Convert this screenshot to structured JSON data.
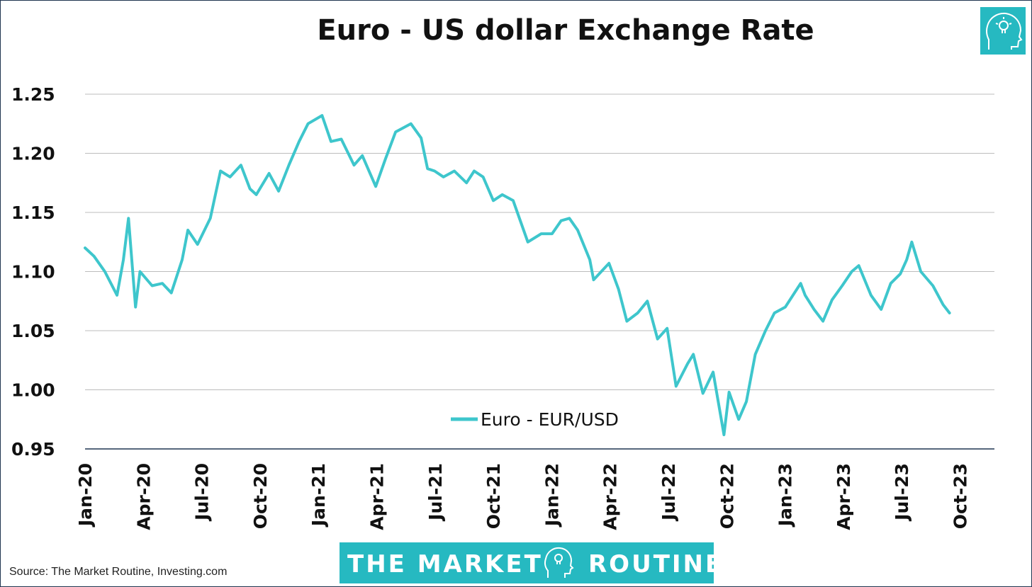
{
  "brand": {
    "name_left": "THE MARKET",
    "name_right": "ROUTINE",
    "logo_icon": "head-lightbulb-icon",
    "color": "#26b9c1"
  },
  "source": "Source: The Market Routine, Investing.com",
  "colors": {
    "line": "#3ec6cc",
    "grid": "#bcbcbc",
    "axis": "#1f3550"
  },
  "chart_data": {
    "type": "line",
    "title": "Euro - US dollar Exchange Rate",
    "xlabel": "",
    "ylabel": "",
    "ylim": [
      0.95,
      1.25
    ],
    "yticks": [
      "1.25",
      "1.20",
      "1.15",
      "1.10",
      "1.05",
      "1.00",
      "0.95"
    ],
    "ytick_values": [
      1.25,
      1.2,
      1.15,
      1.1,
      1.05,
      1.0,
      0.95
    ],
    "xticks": [
      "Jan-20",
      "Apr-20",
      "Jul-20",
      "Oct-20",
      "Jan-21",
      "Apr-21",
      "Jul-21",
      "Oct-21",
      "Jan-22",
      "Apr-22",
      "Jul-22",
      "Oct-22",
      "Jan-23",
      "Apr-23",
      "Jul-23",
      "Oct-23"
    ],
    "grid": true,
    "legend": {
      "position": "bottom-center-inside"
    },
    "series": [
      {
        "name": "Euro - EUR/USD",
        "color": "#3ec6cc",
        "x": [
          "2020-01-01",
          "2020-01-15",
          "2020-02-01",
          "2020-02-20",
          "2020-03-01",
          "2020-03-09",
          "2020-03-20",
          "2020-03-27",
          "2020-04-15",
          "2020-05-01",
          "2020-05-15",
          "2020-06-01",
          "2020-06-10",
          "2020-06-25",
          "2020-07-15",
          "2020-07-31",
          "2020-08-15",
          "2020-09-01",
          "2020-09-15",
          "2020-09-25",
          "2020-10-15",
          "2020-10-30",
          "2020-11-15",
          "2020-12-01",
          "2020-12-15",
          "2021-01-06",
          "2021-01-20",
          "2021-02-05",
          "2021-02-25",
          "2021-03-10",
          "2021-03-31",
          "2021-04-15",
          "2021-05-01",
          "2021-05-25",
          "2021-06-10",
          "2021-06-20",
          "2021-07-01",
          "2021-07-15",
          "2021-08-01",
          "2021-08-20",
          "2021-09-01",
          "2021-09-15",
          "2021-10-01",
          "2021-10-15",
          "2021-11-01",
          "2021-11-24",
          "2021-12-15",
          "2022-01-01",
          "2022-01-15",
          "2022-01-28",
          "2022-02-10",
          "2022-03-01",
          "2022-03-07",
          "2022-03-31",
          "2022-04-15",
          "2022-04-28",
          "2022-05-15",
          "2022-05-30",
          "2022-06-15",
          "2022-06-30",
          "2022-07-14",
          "2022-08-01",
          "2022-08-10",
          "2022-08-25",
          "2022-09-10",
          "2022-09-27",
          "2022-10-05",
          "2022-10-20",
          "2022-11-01",
          "2022-11-15",
          "2022-12-01",
          "2022-12-15",
          "2023-01-01",
          "2023-01-25",
          "2023-02-01",
          "2023-02-15",
          "2023-03-01",
          "2023-03-15",
          "2023-03-31",
          "2023-04-15",
          "2023-04-26",
          "2023-05-15",
          "2023-05-31",
          "2023-06-15",
          "2023-06-30",
          "2023-07-10",
          "2023-07-18",
          "2023-08-01",
          "2023-08-20",
          "2023-09-05",
          "2023-09-15"
        ],
        "y": [
          1.12,
          1.113,
          1.1,
          1.08,
          1.11,
          1.145,
          1.07,
          1.1,
          1.088,
          1.09,
          1.082,
          1.11,
          1.135,
          1.123,
          1.145,
          1.185,
          1.18,
          1.19,
          1.17,
          1.165,
          1.183,
          1.168,
          1.19,
          1.21,
          1.225,
          1.232,
          1.21,
          1.212,
          1.19,
          1.198,
          1.172,
          1.195,
          1.218,
          1.225,
          1.213,
          1.187,
          1.185,
          1.18,
          1.185,
          1.175,
          1.185,
          1.18,
          1.16,
          1.165,
          1.16,
          1.125,
          1.132,
          1.132,
          1.143,
          1.145,
          1.135,
          1.11,
          1.093,
          1.107,
          1.085,
          1.058,
          1.065,
          1.075,
          1.043,
          1.052,
          1.003,
          1.022,
          1.03,
          0.997,
          1.015,
          0.962,
          0.998,
          0.975,
          0.99,
          1.03,
          1.05,
          1.065,
          1.07,
          1.09,
          1.08,
          1.068,
          1.058,
          1.076,
          1.088,
          1.1,
          1.105,
          1.08,
          1.068,
          1.09,
          1.098,
          1.11,
          1.125,
          1.1,
          1.088,
          1.072,
          1.065
        ]
      }
    ]
  }
}
